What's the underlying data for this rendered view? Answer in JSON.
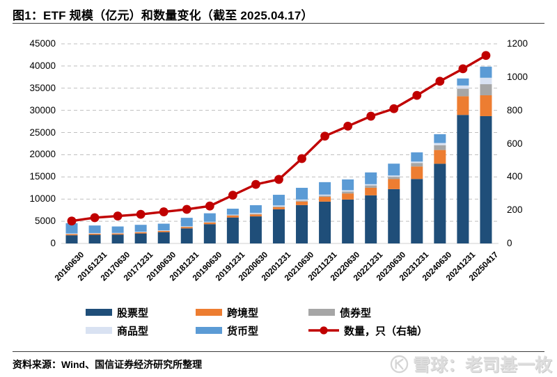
{
  "header": {
    "title": "图1：ETF 规模（亿元）和数量变化（截至 2025.04.17）"
  },
  "footer": {
    "source": "资料来源：Wind、国信证券经济研究所整理",
    "watermark": "雪球：老司基一枚"
  },
  "chart_data": {
    "type": "bar",
    "subtype": "stacked-bars-with-line",
    "title": "ETF 规模（亿元）和数量变化（截至 2025.04.17）",
    "grid": "dashed-horizontal",
    "legend_position": "bottom",
    "categories": [
      "20160630",
      "20161231",
      "20170630",
      "20171231",
      "20180630",
      "20181231",
      "20190630",
      "20191231",
      "20200630",
      "20201231",
      "20210630",
      "20211231",
      "20220630",
      "20221231",
      "20230630",
      "20231231",
      "20240630",
      "20241231",
      "20250417"
    ],
    "series": [
      {
        "name": "股票型",
        "color": "#1F4E79",
        "values": [
          1850,
          1950,
          2000,
          2250,
          2550,
          3400,
          4350,
          5850,
          6100,
          7700,
          8650,
          9430,
          9900,
          10850,
          12250,
          14530,
          17970,
          28970,
          28700
        ]
      },
      {
        "name": "跨境型",
        "color": "#ED7D31",
        "values": [
          250,
          250,
          250,
          260,
          270,
          300,
          350,
          420,
          450,
          480,
          800,
          1070,
          1370,
          1700,
          2260,
          2820,
          3100,
          4210,
          4700
        ]
      },
      {
        "name": "债券型",
        "color": "#A6A6A6",
        "values": [
          20,
          20,
          20,
          30,
          30,
          60,
          80,
          110,
          150,
          170,
          200,
          240,
          440,
          530,
          520,
          800,
          1090,
          1700,
          2500
        ]
      },
      {
        "name": "商品型",
        "color": "#D9E2F2",
        "values": [
          150,
          130,
          110,
          110,
          110,
          120,
          120,
          120,
          200,
          220,
          250,
          270,
          290,
          280,
          290,
          300,
          480,
          730,
          1450
        ]
      },
      {
        "name": "货币型",
        "color": "#5B9BD5",
        "values": [
          2300,
          1700,
          1450,
          1550,
          1500,
          1900,
          1900,
          1340,
          1720,
          2400,
          2640,
          2810,
          2430,
          2650,
          2670,
          2080,
          1990,
          1580,
          2500
        ]
      }
    ],
    "line_series": {
      "name": "数量，只（右轴）",
      "color": "#C00000",
      "axis": "right",
      "values": [
        135,
        155,
        165,
        175,
        190,
        205,
        225,
        290,
        355,
        385,
        510,
        645,
        705,
        765,
        810,
        890,
        975,
        1050,
        1130
      ]
    },
    "left_axis": {
      "min": 0,
      "max": 45000,
      "step": 5000,
      "ticks": [
        "45000",
        "40000",
        "35000",
        "30000",
        "25000",
        "20000",
        "15000",
        "10000",
        "5000",
        "0"
      ]
    },
    "right_axis": {
      "min": 0,
      "max": 1200,
      "step": 200,
      "ticks": [
        "1200",
        "1000",
        "800",
        "600",
        "400",
        "200",
        "0"
      ]
    }
  }
}
